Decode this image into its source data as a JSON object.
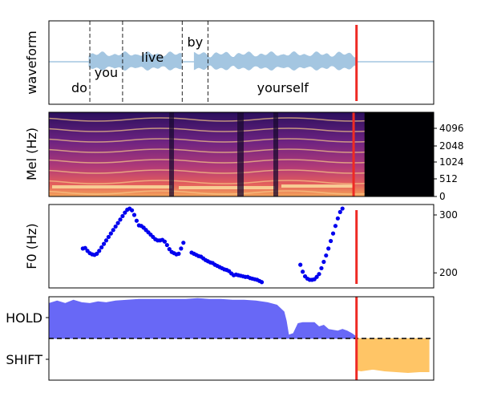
{
  "colors": {
    "waveform": "#a4c6e1",
    "cursor": "#ee2a24",
    "word_boundary": "#222222",
    "f0_points": "#0000ee",
    "hold_fill": "#6868f6",
    "shift_fill": "#ffc566",
    "threshold": "#000000"
  },
  "chart_data": [
    {
      "type": "line",
      "name": "waveform-panel",
      "ylabel": "waveform",
      "words": [
        {
          "text": "do",
          "start": 0.0,
          "end": 0.18,
          "row": "low"
        },
        {
          "text": "you",
          "start": 0.18,
          "end": 0.46,
          "row": "mid"
        },
        {
          "text": "live",
          "start": 0.46,
          "end": 0.97,
          "row": "high"
        },
        {
          "text": "by",
          "start": 0.97,
          "end": 1.19,
          "row": "top"
        },
        {
          "text": "yourself",
          "start": 1.19,
          "end": 2.47,
          "row": "low"
        }
      ],
      "speech_segments": [
        [
          0.17,
          0.97
        ],
        [
          1.07,
          2.47
        ]
      ],
      "cursor": 2.46,
      "xlim": [
        -0.17,
        3.12
      ]
    },
    {
      "type": "heatmap",
      "name": "mel-spectrogram",
      "ylabel": "Mel (Hz)",
      "yticks": [
        "0",
        "512",
        "1024",
        "2048",
        "4096"
      ],
      "colormap": "magma",
      "active_until": 2.55,
      "cursor": 2.46,
      "xlim": [
        -0.05,
        3.12
      ]
    },
    {
      "type": "scatter",
      "name": "f0",
      "ylabel": "F0 (Hz)",
      "ylim": [
        174,
        318
      ],
      "yticks": [
        200,
        300
      ],
      "cursor": 2.46,
      "series": [
        {
          "x": [
            0.12,
            0.14,
            0.16,
            0.18,
            0.2,
            0.22,
            0.24,
            0.26,
            0.28,
            0.3,
            0.32,
            0.34,
            0.36,
            0.38,
            0.4,
            0.42,
            0.44,
            0.46,
            0.48,
            0.5,
            0.52,
            0.54,
            0.56,
            0.58,
            0.6,
            0.62,
            0.64,
            0.66,
            0.68,
            0.7,
            0.72,
            0.74,
            0.76,
            0.78,
            0.8,
            0.82,
            0.84,
            0.86,
            0.88,
            0.9,
            0.92,
            0.94,
            0.96,
            0.98,
            1.05,
            1.07,
            1.09,
            1.11,
            1.13,
            1.15,
            1.17,
            1.19,
            1.21,
            1.23,
            1.25,
            1.27,
            1.29,
            1.31,
            1.33,
            1.35,
            1.37,
            1.39,
            1.41,
            1.43,
            1.45,
            1.47,
            1.49,
            1.51,
            1.53,
            1.55,
            1.57,
            1.59,
            1.61,
            1.63,
            1.65,
            1.98,
            2.0,
            2.02,
            2.04,
            2.06,
            2.08,
            2.1,
            2.12,
            2.14,
            2.16,
            2.18,
            2.2,
            2.22,
            2.24,
            2.26,
            2.28,
            2.3,
            2.32,
            2.34
          ],
          "y": [
            242,
            243,
            238,
            234,
            232,
            231,
            233,
            238,
            244,
            250,
            256,
            262,
            268,
            274,
            280,
            286,
            292,
            298,
            304,
            309,
            311,
            308,
            300,
            290,
            282,
            281,
            278,
            274,
            270,
            266,
            262,
            258,
            256,
            256,
            257,
            254,
            248,
            241,
            236,
            234,
            232,
            233,
            242,
            252,
            235,
            233,
            231,
            229,
            228,
            225,
            222,
            220,
            218,
            217,
            214,
            212,
            210,
            208,
            206,
            205,
            203,
            199,
            196,
            197,
            196,
            195,
            194,
            193,
            193,
            191,
            190,
            189,
            188,
            186,
            184,
            214,
            202,
            194,
            190,
            188,
            188,
            189,
            193,
            198,
            208,
            219,
            230,
            242,
            255,
            268,
            281,
            294,
            305,
            311
          ]
        }
      ]
    },
    {
      "type": "area",
      "name": "turn-taking",
      "yticks": [
        "HOLD",
        "SHIFT"
      ],
      "threshold": 0.5,
      "cursor": 2.46,
      "series": [
        {
          "name": "HOLD",
          "x": [
            -0.17,
            -0.1,
            -0.03,
            0.04,
            0.11,
            0.18,
            0.25,
            0.32,
            0.4,
            0.5,
            0.6,
            0.7,
            0.8,
            0.9,
            1.0,
            1.1,
            1.2,
            1.3,
            1.4,
            1.5,
            1.6,
            1.7,
            1.78,
            1.84,
            1.86,
            1.88,
            1.92,
            1.96,
            2.0,
            2.05,
            2.1,
            2.14,
            2.18,
            2.22,
            2.26,
            2.3,
            2.34,
            2.38,
            2.42,
            2.46
          ],
          "y": [
            0.92,
            0.95,
            0.92,
            0.96,
            0.93,
            0.92,
            0.94,
            0.93,
            0.95,
            0.96,
            0.97,
            0.97,
            0.97,
            0.97,
            0.97,
            0.98,
            0.97,
            0.97,
            0.96,
            0.96,
            0.95,
            0.93,
            0.9,
            0.82,
            0.71,
            0.54,
            0.56,
            0.68,
            0.69,
            0.69,
            0.69,
            0.64,
            0.66,
            0.61,
            0.6,
            0.59,
            0.61,
            0.59,
            0.56,
            0.52
          ]
        },
        {
          "name": "SHIFT",
          "x": [
            2.46,
            2.5,
            2.6,
            2.7,
            2.8,
            2.9,
            3.0,
            3.08
          ],
          "y": [
            0.12,
            0.11,
            0.13,
            0.11,
            0.1,
            0.09,
            0.1,
            0.1
          ]
        }
      ]
    }
  ]
}
